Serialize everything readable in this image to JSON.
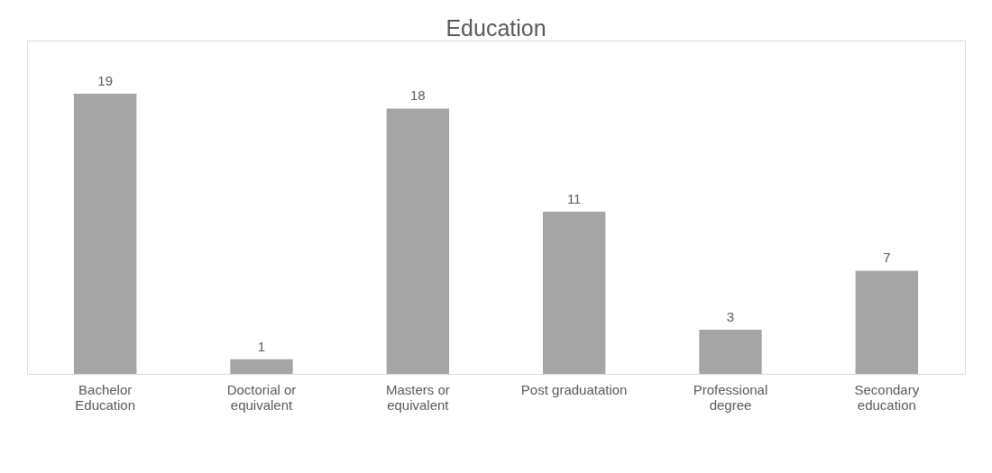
{
  "chart_data": {
    "type": "bar",
    "title": "Education",
    "categories": [
      "Bachelor Education",
      "Doctorial or equivalent",
      "Masters or equivalent",
      "Post graduatation",
      "Professional degree",
      "Secondary education"
    ],
    "values": [
      19,
      1,
      18,
      11,
      3,
      7
    ],
    "color": "#a5a5a5",
    "data_labels": true
  }
}
